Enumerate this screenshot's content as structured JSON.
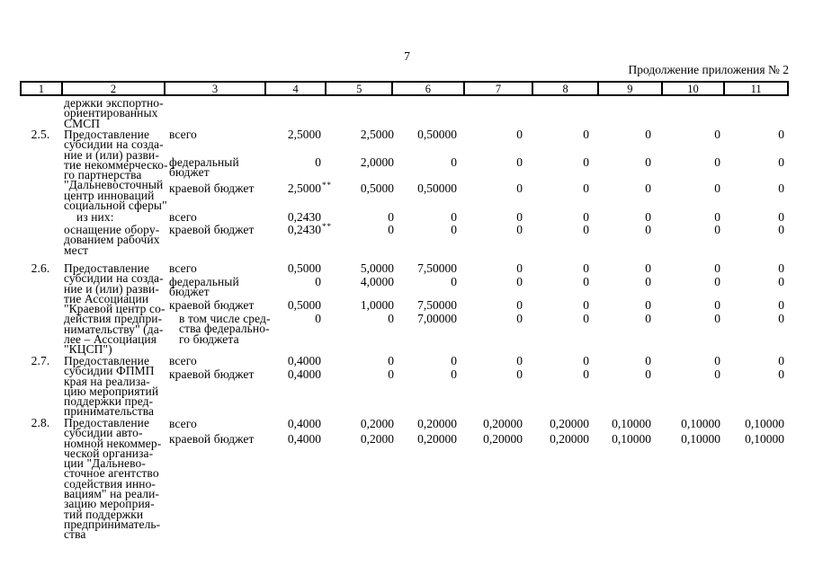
{
  "page": {
    "number": "7",
    "continuation_note": "Продолжение приложения № 2"
  },
  "table": {
    "column_headers": [
      "1",
      "2",
      "3",
      "4",
      "5",
      "6",
      "7",
      "8",
      "9",
      "10",
      "11"
    ],
    "carryover_description": [
      "держки экспортно-",
      "ориентированных",
      "СМСП"
    ],
    "footnote_marker": "**",
    "groups": [
      {
        "num": "2.5.",
        "description": [
          "Предоставление",
          "субсидии на созда-",
          "ние и (или) разви-",
          "тие некоммерческо-",
          "го партнерства",
          "\"Дальневосточный",
          "центр инноваций",
          "социальной сферы\""
        ],
        "rows": [
          {
            "label": [
              "всего"
            ],
            "values": [
              "2,5000",
              "2,5000",
              "0,50000",
              "0",
              "0",
              "0",
              "0",
              "0"
            ]
          },
          {
            "label": [
              "федеральный",
              "бюджет"
            ],
            "values": [
              "0",
              "2,0000",
              "0",
              "0",
              "0",
              "0",
              "0",
              "0"
            ]
          },
          {
            "label": [
              "краевой бюджет"
            ],
            "values": [
              "2,5000**",
              "0,5000",
              "0,50000",
              "0",
              "0",
              "0",
              "0",
              "0"
            ]
          }
        ]
      },
      {
        "num": "",
        "description": [
          "из них:"
        ],
        "desc_indent": true,
        "rows": [
          {
            "label": [
              "всего"
            ],
            "values": [
              "0,2430",
              "0",
              "0",
              "0",
              "0",
              "0",
              "0",
              "0"
            ]
          }
        ]
      },
      {
        "num": "",
        "description": [
          "оснащение обору-",
          "дованием рабочих",
          "мест"
        ],
        "rows": [
          {
            "label": [
              "краевой бюджет"
            ],
            "values": [
              "0,2430**",
              "0",
              "0",
              "0",
              "0",
              "0",
              "0",
              "0"
            ]
          }
        ]
      },
      {
        "num": "2.6.",
        "description": [
          "Предоставление",
          "субсидии на созда-",
          "ние и (или) разви-",
          "тие Ассоциации",
          "\"Краевой центр со-",
          "действия предпри-",
          "нимательству\" (да-",
          "лее – Ассоциация",
          "\"КЦСП\")"
        ],
        "rows": [
          {
            "label": [
              "всего"
            ],
            "values": [
              "0,5000",
              "5,0000",
              "7,50000",
              "0",
              "0",
              "0",
              "0",
              "0"
            ]
          },
          {
            "label": [
              "федеральный",
              "бюджет"
            ],
            "values": [
              "0",
              "4,0000",
              "0",
              "0",
              "0",
              "0",
              "0",
              "0"
            ]
          },
          {
            "label": [
              "краевой бюджет"
            ],
            "values": [
              "0,5000",
              "1,0000",
              "7,50000",
              "0",
              "0",
              "0",
              "0",
              "0"
            ]
          },
          {
            "label": [
              "в том числе сред-",
              "ства федерально-",
              "го бюджета"
            ],
            "label_indent": true,
            "values": [
              "0",
              "0",
              "7,00000",
              "0",
              "0",
              "0",
              "0",
              "0"
            ]
          }
        ]
      },
      {
        "num": "2.7.",
        "description": [
          "Предоставление",
          "субсидии ФПМП",
          "края на реализа-",
          "цию мероприятий",
          "поддержки пред-",
          "принимательства"
        ],
        "rows": [
          {
            "label": [
              "всего"
            ],
            "values": [
              "0,4000",
              "0",
              "0",
              "0",
              "0",
              "0",
              "0",
              "0"
            ]
          },
          {
            "label": [
              "краевой бюджет"
            ],
            "values": [
              "0,4000",
              "0",
              "0",
              "0",
              "0",
              "0",
              "0",
              "0"
            ]
          }
        ]
      },
      {
        "num": "2.8.",
        "description": [
          "Предоставление",
          "субсидии авто-",
          "номной некоммер-",
          "ческой организа-",
          "ции \"Дальнево-",
          "сточное агентство",
          "содействия инно-",
          "вациям\" на реали-",
          "зацию мероприя-",
          "тий поддержки",
          "предприниматель-",
          "ства"
        ],
        "rows": [
          {
            "label": [
              "всего"
            ],
            "values": [
              "0,4000",
              "0,2000",
              "0,20000",
              "0,20000",
              "0,20000",
              "0,10000",
              "0,10000",
              "0,10000"
            ]
          },
          {
            "label": [
              "краевой бюджет"
            ],
            "values": [
              "0,4000",
              "0,2000",
              "0,20000",
              "0,20000",
              "0,20000",
              "0,10000",
              "0,10000",
              "0,10000"
            ]
          }
        ]
      }
    ]
  }
}
